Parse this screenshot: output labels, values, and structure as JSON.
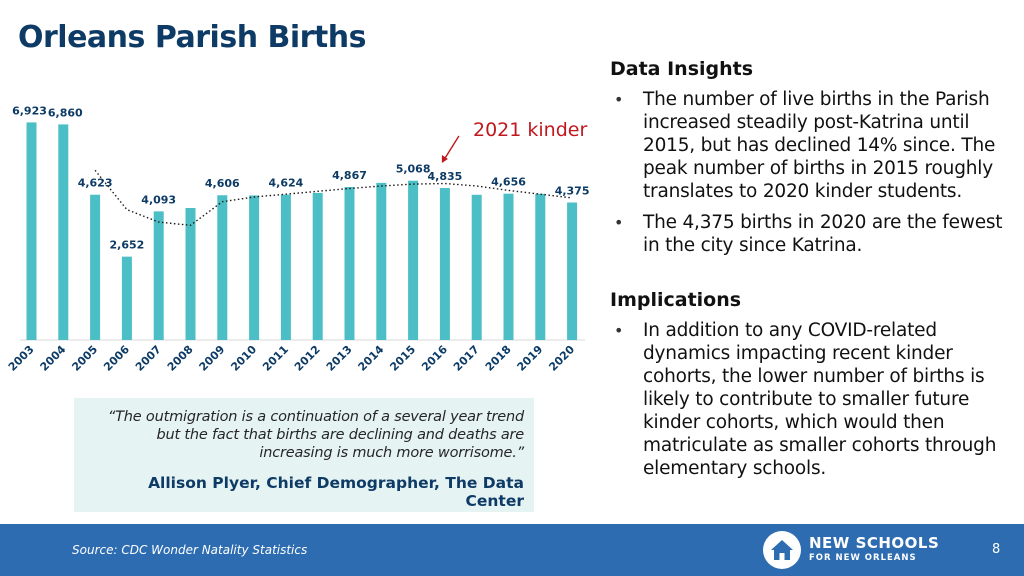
{
  "slide": {
    "title": "Orleans Parish Births",
    "page_number": "8"
  },
  "chart_data": {
    "type": "bar",
    "title": "",
    "categories": [
      "2003",
      "2004",
      "2005",
      "2006",
      "2007",
      "2008",
      "2009",
      "2010",
      "2011",
      "2012",
      "2013",
      "2014",
      "2015",
      "2016",
      "2017",
      "2018",
      "2019",
      "2020"
    ],
    "values": [
      6923,
      6860,
      4623,
      2652,
      4093,
      4200,
      4606,
      4600,
      4624,
      4680,
      4867,
      5000,
      5068,
      4835,
      4620,
      4656,
      4650,
      4375
    ],
    "data_labels": [
      {
        "index": 0,
        "text": "6,923"
      },
      {
        "index": 1,
        "text": "6,860"
      },
      {
        "index": 2,
        "text": "4,623"
      },
      {
        "index": 3,
        "text": "2,652"
      },
      {
        "index": 4,
        "text": "4,093"
      },
      {
        "index": 6,
        "text": "4,606"
      },
      {
        "index": 8,
        "text": "4,624"
      },
      {
        "index": 10,
        "text": "4,867"
      },
      {
        "index": 12,
        "text": "5,068"
      },
      {
        "index": 13,
        "text": "4,835"
      },
      {
        "index": 15,
        "text": "4,656"
      },
      {
        "index": 17,
        "text": "4,375"
      }
    ],
    "trendline": {
      "style": "dotted",
      "start_index": 2,
      "values": [
        5400,
        4150,
        3750,
        3650,
        4400,
        4550,
        4640,
        4730,
        4820,
        4900,
        4960,
        4980,
        4900,
        4760,
        4640,
        4520
      ]
    },
    "ylim": [
      0,
      7000
    ],
    "bar_color": "#4bbfc5",
    "annotation": {
      "text": "2021 kinder",
      "target_index": 13,
      "color": "#c0181e"
    }
  },
  "quote": {
    "text": "“The outmigration is a continuation of a several year trend but the fact that births are declining and deaths are increasing is much more worrisome.”",
    "author": "Allison Plyer, Chief Demographer, The Data Center"
  },
  "insights": {
    "heading": "Data Insights",
    "bullets": [
      "The number of live births in the Parish increased steadily post-Katrina until 2015, but has declined 14% since. The peak number of births in 2015 roughly translates to 2020 kinder students.",
      "The 4,375 births in 2020 are the fewest in the city since Katrina."
    ]
  },
  "implications": {
    "heading": "Implications",
    "bullets": [
      "In addition to any COVID-related dynamics impacting recent kinder cohorts, the lower number of births is likely to contribute to smaller future kinder cohorts, which would then matriculate as smaller cohorts through elementary schools."
    ]
  },
  "footer": {
    "source": "Source: CDC Wonder Natality Statistics",
    "logo_line1": "NEW SCHOOLS",
    "logo_line2": "FOR NEW ORLEANS",
    "logo_icon": "house-circle-icon",
    "background_color": "#2d6cb0"
  }
}
